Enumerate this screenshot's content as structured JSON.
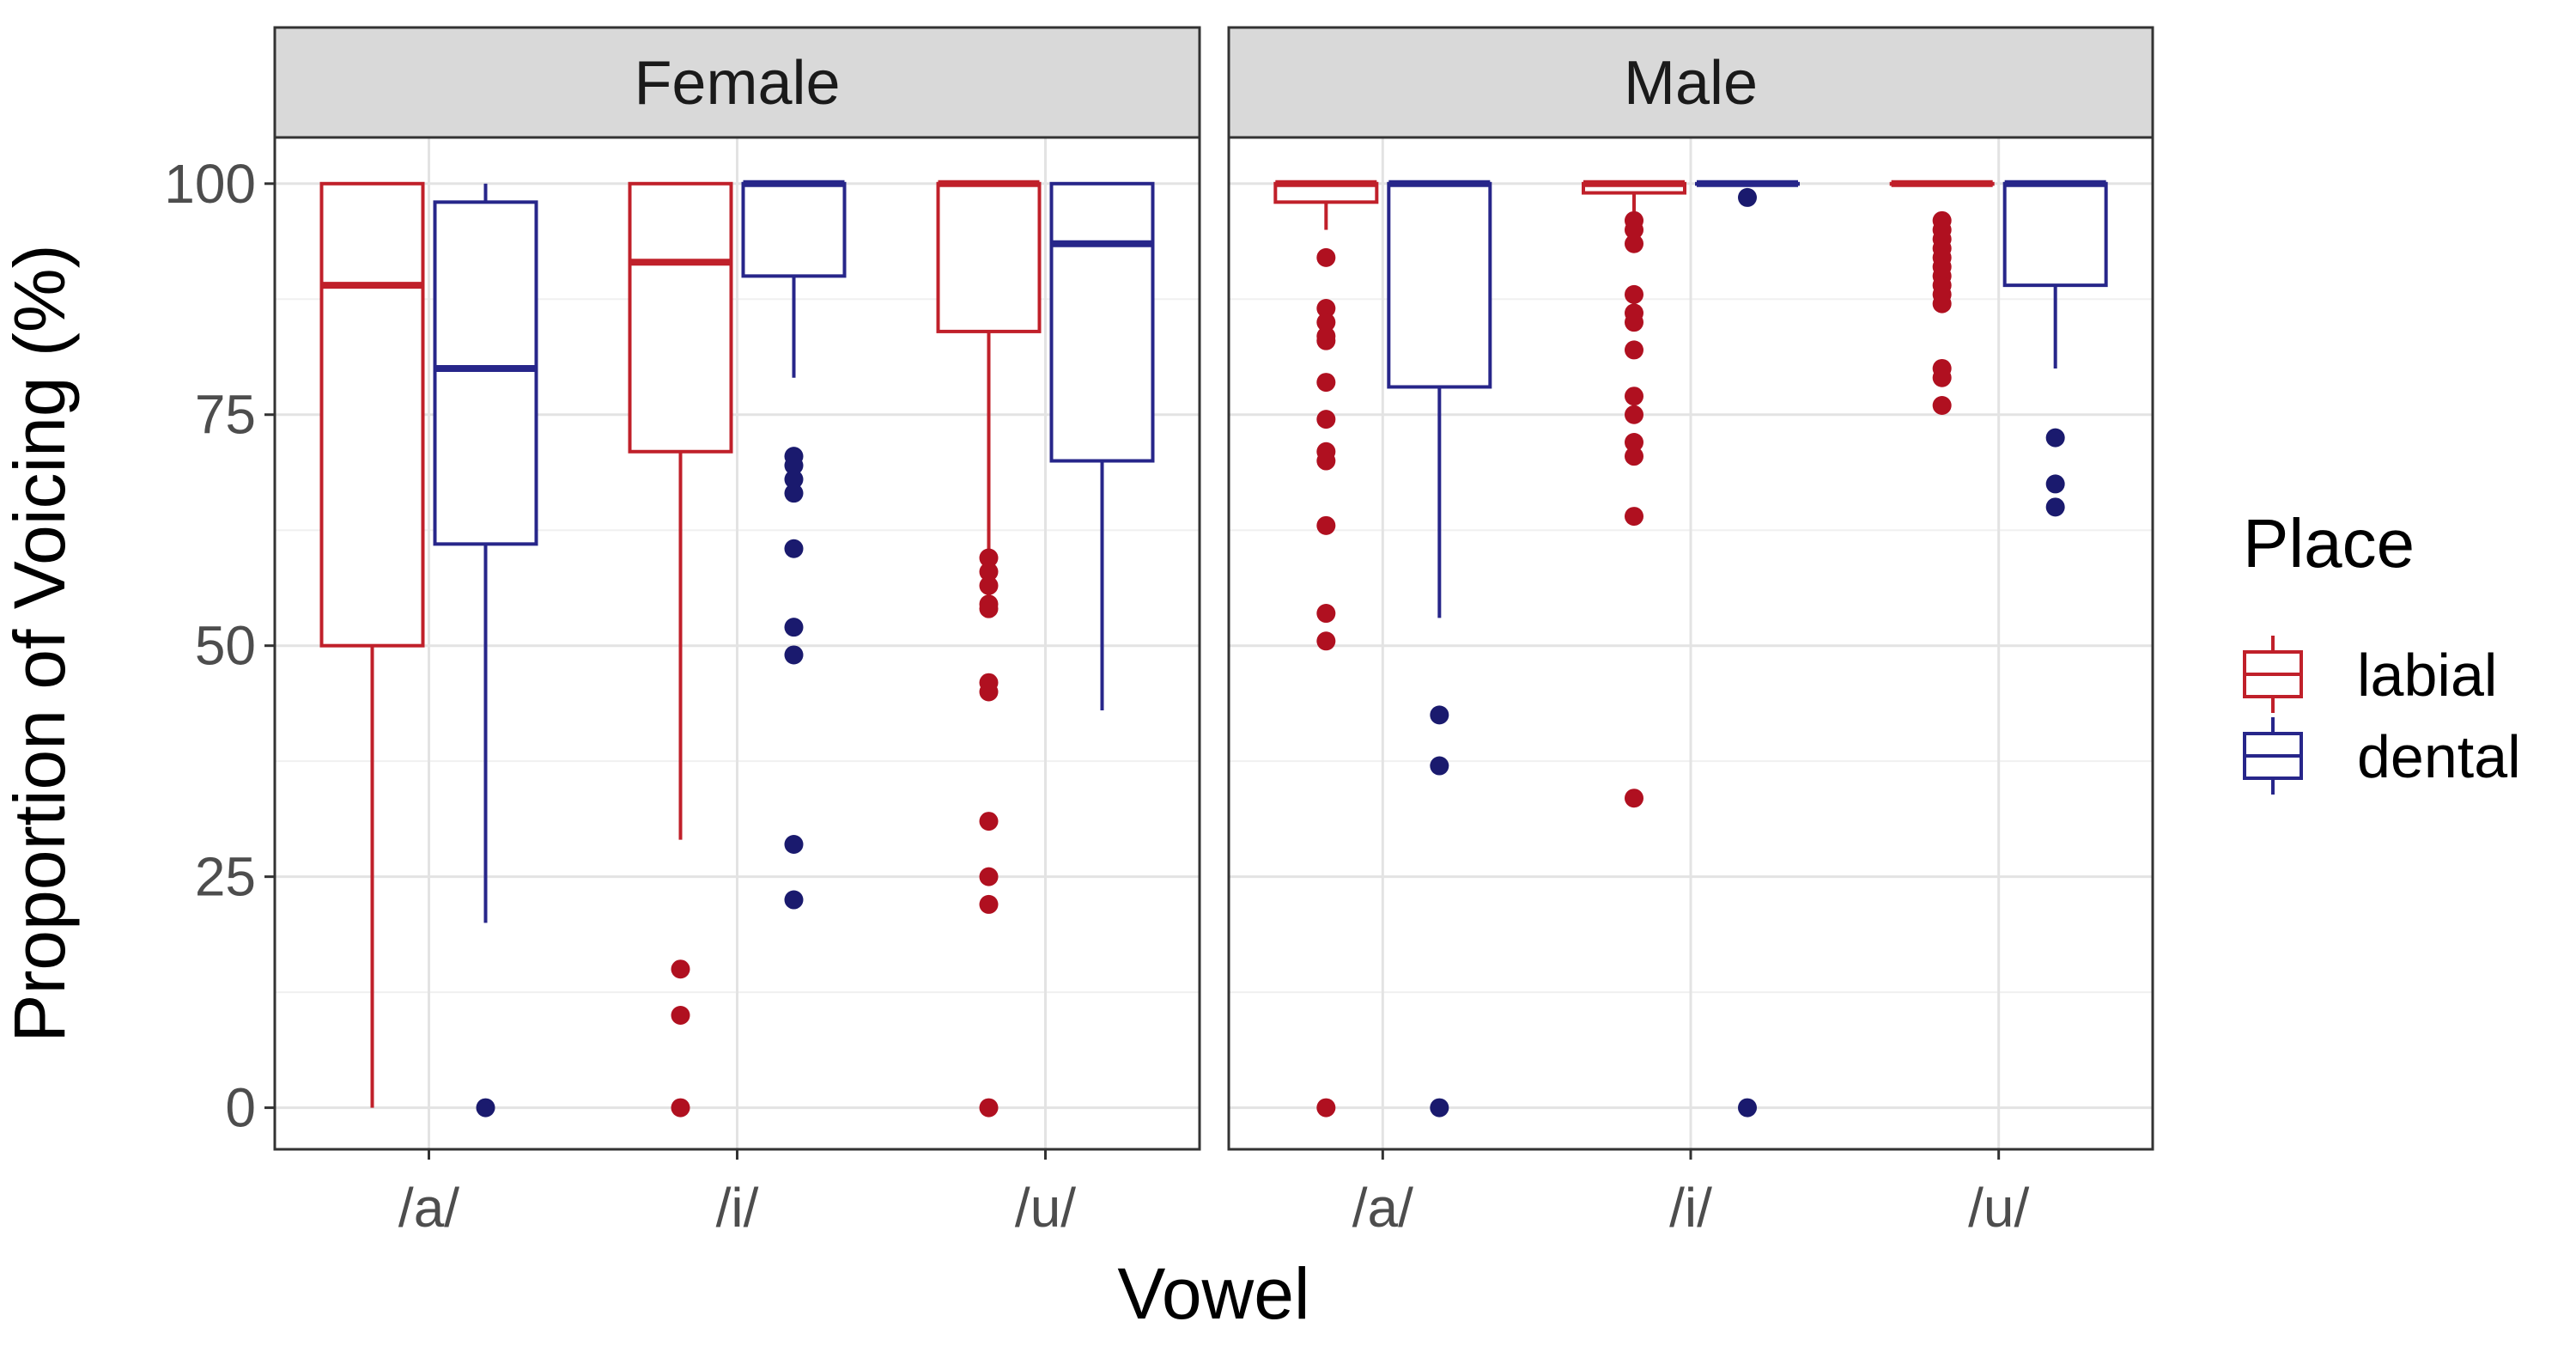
{
  "chart_data": {
    "type": "boxplot",
    "ylabel": "Proportion of Voicing (%)",
    "xlabel": "Vowel",
    "ylim": [
      -4.5,
      105
    ],
    "yticks": [
      0,
      25,
      50,
      75,
      100
    ],
    "categories": [
      "/a/",
      "/i/",
      "/u/"
    ],
    "legend": {
      "title": "Place",
      "position": "right",
      "items": [
        {
          "key": "labial",
          "label": "labial",
          "color": "#c0202a"
        },
        {
          "key": "dental",
          "label": "dental",
          "color": "#27268a"
        }
      ]
    },
    "point_colors": {
      "labial": "#b01020",
      "dental": "#1a1a6e"
    },
    "panels": [
      {
        "label": "Female",
        "boxes": [
          {
            "vowel": "/a/",
            "place": "labial",
            "low": 0,
            "q1": 50,
            "median": 89,
            "q3": 100,
            "high": 100,
            "outliers": []
          },
          {
            "vowel": "/a/",
            "place": "dental",
            "low": 20,
            "q1": 61,
            "median": 80,
            "q3": 98,
            "high": 100,
            "outliers": [
              0
            ]
          },
          {
            "vowel": "/i/",
            "place": "labial",
            "low": 29,
            "q1": 71,
            "median": 91.5,
            "q3": 100,
            "high": 100,
            "outliers": [
              15,
              10,
              0
            ]
          },
          {
            "vowel": "/i/",
            "place": "dental",
            "low": 79,
            "q1": 90,
            "median": 100,
            "q3": 100,
            "high": 100,
            "outliers": [
              70.5,
              69.5,
              68,
              66.5,
              60.5,
              52,
              49,
              28.5,
              22.5
            ]
          },
          {
            "vowel": "/u/",
            "place": "labial",
            "low": 57,
            "q1": 84,
            "median": 100,
            "q3": 100,
            "high": 100,
            "outliers": [
              59.5,
              58,
              56.5,
              54.5,
              54,
              46,
              45,
              31,
              25,
              22,
              0
            ]
          },
          {
            "vowel": "/u/",
            "place": "dental",
            "low": 43,
            "q1": 70,
            "median": 93.5,
            "q3": 100,
            "high": 100,
            "outliers": []
          }
        ]
      },
      {
        "label": "Male",
        "boxes": [
          {
            "vowel": "/a/",
            "place": "labial",
            "low": 95,
            "q1": 98,
            "median": 100,
            "q3": 100,
            "high": 100,
            "outliers": [
              92,
              86.5,
              85,
              83.5,
              83,
              78.5,
              74.5,
              71,
              70,
              63,
              53.5,
              50.5,
              0
            ]
          },
          {
            "vowel": "/a/",
            "place": "dental",
            "low": 53,
            "q1": 78,
            "median": 100,
            "q3": 100,
            "high": 100,
            "outliers": [
              42.5,
              37,
              0
            ]
          },
          {
            "vowel": "/i/",
            "place": "labial",
            "low": 97,
            "q1": 99,
            "median": 100,
            "q3": 100,
            "high": 100,
            "outliers": [
              96,
              95,
              93.5,
              88,
              86,
              85,
              82,
              77,
              75,
              72,
              70.5,
              64,
              33.5
            ]
          },
          {
            "vowel": "/i/",
            "place": "dental",
            "low": 100,
            "q1": 100,
            "median": 100,
            "q3": 100,
            "high": 100,
            "outliers": [
              98.5,
              0
            ]
          },
          {
            "vowel": "/u/",
            "place": "labial",
            "low": 100,
            "q1": 100,
            "median": 100,
            "q3": 100,
            "high": 100,
            "outliers": [
              96,
              95,
              94,
              93,
              92,
              91,
              90,
              89,
              88,
              87,
              80,
              79,
              76
            ]
          },
          {
            "vowel": "/u/",
            "place": "dental",
            "low": 80,
            "q1": 89,
            "median": 100,
            "q3": 100,
            "high": 100,
            "outliers": [
              72.5,
              67.5,
              65
            ]
          }
        ]
      }
    ]
  }
}
